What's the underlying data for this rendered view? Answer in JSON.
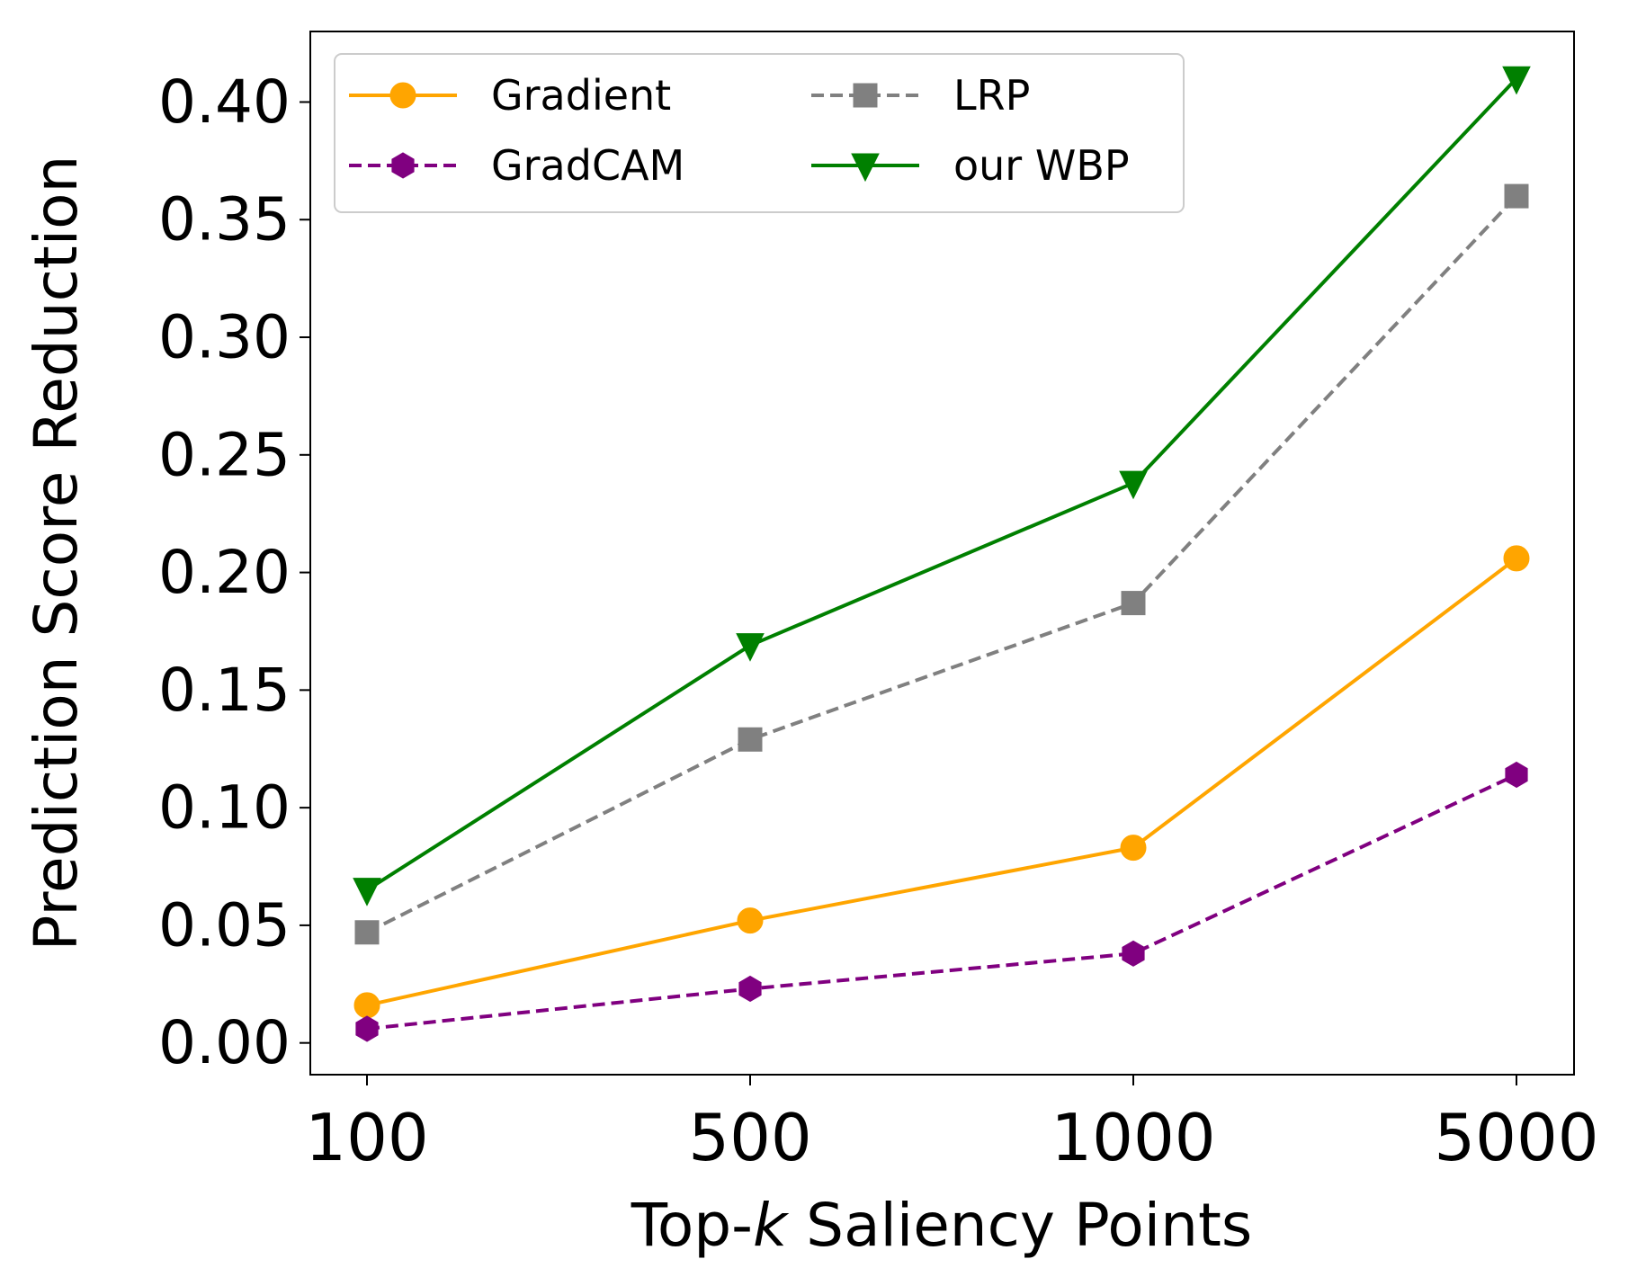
{
  "chart_data": {
    "type": "line",
    "title": "",
    "xlabel_prefix": "Top-",
    "xlabel_italic": "k",
    "xlabel_suffix": " Saliency Points",
    "ylabel": "Prediction Score Reduction",
    "categories": [
      "100",
      "500",
      "1000",
      "5000"
    ],
    "ylim": [
      -0.0135,
      0.43
    ],
    "yticks": [
      0.0,
      0.05,
      0.1,
      0.15,
      0.2,
      0.25,
      0.3,
      0.35,
      0.4
    ],
    "ytick_labels": [
      "0.00",
      "0.05",
      "0.10",
      "0.15",
      "0.20",
      "0.25",
      "0.30",
      "0.35",
      "0.40"
    ],
    "legend_position": "top-left",
    "grid": false,
    "series": [
      {
        "name": "Gradient",
        "values": [
          0.016,
          0.052,
          0.083,
          0.206
        ],
        "color": "#ffa500",
        "dash": "solid",
        "marker": "circle"
      },
      {
        "name": "GradCAM",
        "values": [
          0.006,
          0.023,
          0.038,
          0.114
        ],
        "color": "#800080",
        "dash": "dashed",
        "marker": "hexagon"
      },
      {
        "name": "LRP",
        "values": [
          0.047,
          0.129,
          0.187,
          0.36
        ],
        "color": "#808080",
        "dash": "dashed",
        "marker": "square"
      },
      {
        "name": "our WBP",
        "values": [
          0.065,
          0.169,
          0.238,
          0.41
        ],
        "color": "#008000",
        "dash": "solid",
        "marker": "triangle-down"
      }
    ]
  }
}
